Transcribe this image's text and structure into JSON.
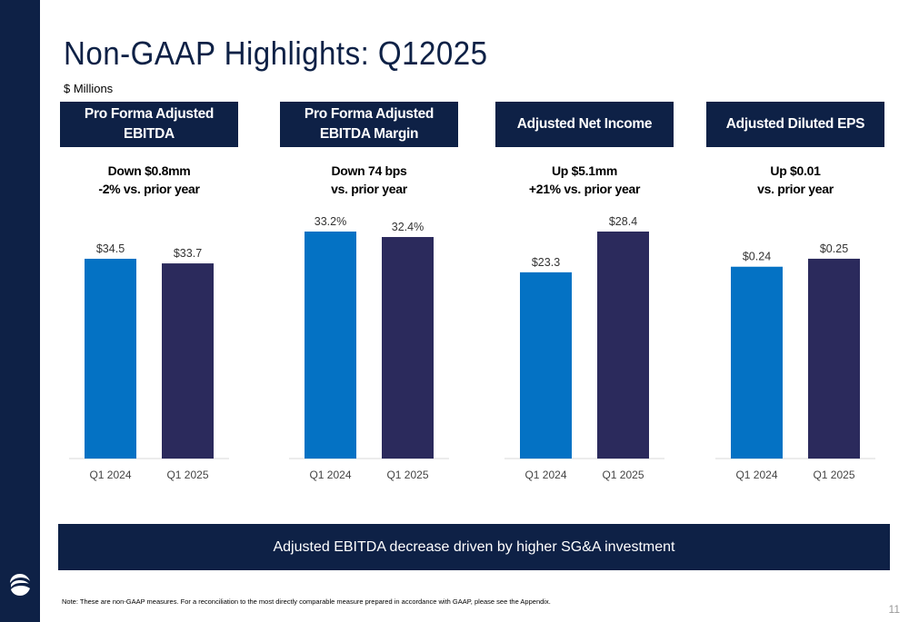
{
  "page": {
    "title": "Non-GAAP Highlights: Q12025",
    "subtitle": "$ Millions",
    "banner": "Adjusted EBITDA decrease driven by higher SG&A investment",
    "footnote": "Note: These are non-GAAP measures. For a reconciliation to the most directly comparable measure prepared in accordance with GAAP, please see the Appendix.",
    "page_number": "11"
  },
  "colors": {
    "navy": "#0e2146",
    "q1_2024": "#0472c4",
    "q1_2025": "#2b2a5c",
    "axis": "#d9d9d9"
  },
  "chart_data": [
    {
      "type": "bar",
      "title": "Pro Forma Adjusted EBITDA",
      "summary_line1": "Down $0.8mm",
      "summary_line2": "-2% vs. prior year",
      "categories": [
        "Q1 2024",
        "Q1 2025"
      ],
      "values": [
        34.5,
        33.7
      ],
      "labels": [
        "$34.5",
        "$33.7"
      ],
      "ylim": [
        0,
        39.2
      ]
    },
    {
      "type": "bar",
      "title": "Pro Forma Adjusted EBITDA Margin",
      "summary_line1": "Down 74 bps",
      "summary_line2": "vs. prior year",
      "categories": [
        "Q1 2024",
        "Q1 2025"
      ],
      "values": [
        33.2,
        32.4
      ],
      "labels": [
        "33.2%",
        "32.4%"
      ],
      "ylim": [
        0,
        33.2
      ]
    },
    {
      "type": "bar",
      "title": "Adjusted Net Income",
      "summary_line1": "Up $5.1mm",
      "summary_line2": "+21% vs. prior year",
      "categories": [
        "Q1 2024",
        "Q1 2025"
      ],
      "values": [
        23.3,
        28.4
      ],
      "labels": [
        "$23.3",
        "$28.4"
      ],
      "ylim": [
        0,
        28.4
      ]
    },
    {
      "type": "bar",
      "title": "Adjusted Diluted EPS",
      "summary_line1": "Up $0.01",
      "summary_line2": "vs. prior year",
      "categories": [
        "Q1 2024",
        "Q1 2025"
      ],
      "values": [
        0.24,
        0.25
      ],
      "labels": [
        "$0.24",
        "$0.25"
      ],
      "ylim": [
        0,
        0.284
      ]
    }
  ]
}
